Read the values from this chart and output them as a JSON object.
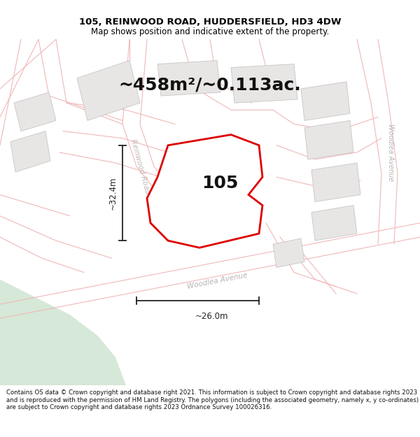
{
  "title": "105, REINWOOD ROAD, HUDDERSFIELD, HD3 4DW",
  "subtitle": "Map shows position and indicative extent of the property.",
  "area_text": "~458m²/~0.113ac.",
  "number_label": "105",
  "width_label": "~26.0m",
  "height_label": "~32.4m",
  "footer_text": "Contains OS data © Crown copyright and database right 2021. This information is subject to Crown copyright and database rights 2023 and is reproduced with the permission of HM Land Registry. The polygons (including the associated geometry, namely x, y co-ordinates) are subject to Crown copyright and database rights 2023 Ordnance Survey 100026316.",
  "map_bg": "#f7f6f4",
  "road_fill": "#f7f6f4",
  "road_line": "#f0b8b8",
  "property_fill": "#ffffff",
  "property_border": "#dd0000",
  "green_color": "#d6e8d8",
  "building_fill": "#e8e6e4",
  "building_edge": "#c8c4c4",
  "dim_color": "#222222",
  "label_color": "#c0b8b8",
  "woodlea_label": "#b8b4b4",
  "title_color": "#000000",
  "number_color": "#111111",
  "area_color": "#111111",
  "footer_line_color": "#cccccc"
}
